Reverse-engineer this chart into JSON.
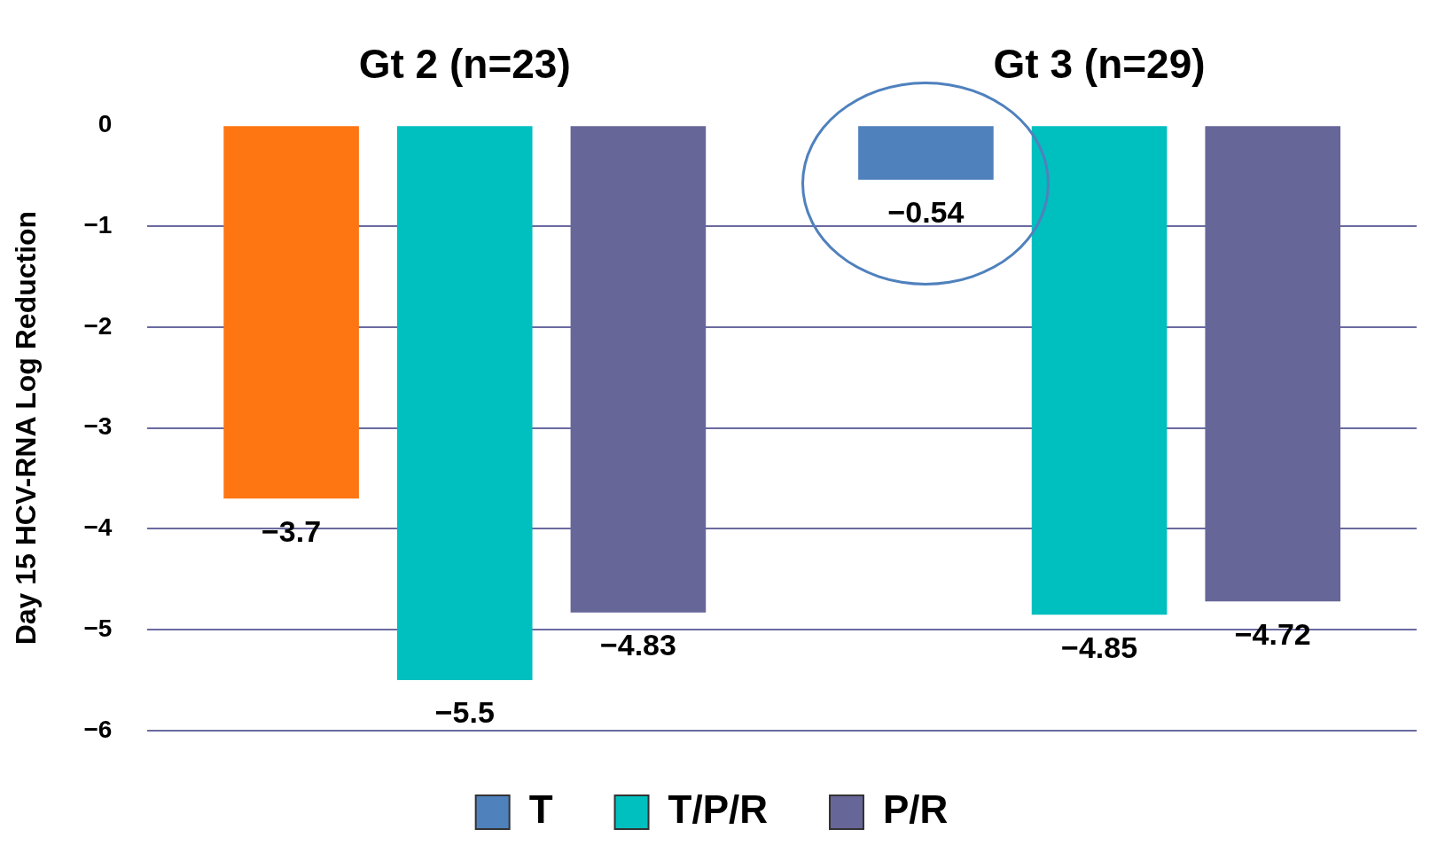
{
  "chart_data": {
    "type": "bar",
    "ylabel": "Day 15 HCV-RNA Log Reduction",
    "categories": [
      "Gt 2 (n=23)",
      "Gt 3 (n=29)"
    ],
    "series": [
      {
        "name": "T",
        "color": "#4f81bd",
        "colors": [
          "#fd7612",
          "#4f81bd"
        ],
        "values": [
          -3.7,
          -0.54
        ],
        "value_labels": [
          "−3.7",
          "−0.54"
        ]
      },
      {
        "name": "T/P/R",
        "color": "#00bfbf",
        "values": [
          -5.5,
          -4.85
        ],
        "value_labels": [
          "−5.5",
          "−4.85"
        ]
      },
      {
        "name": "P/R",
        "color": "#666699",
        "values": [
          -4.83,
          -4.72
        ],
        "value_labels": [
          "−4.83",
          "−4.72"
        ]
      }
    ],
    "ylim": [
      -6,
      0
    ],
    "yticks": [
      0,
      {
        "value": -1,
        "label": "−1"
      },
      {
        "value": -2,
        "label": "−2"
      },
      {
        "value": -3,
        "label": "−3"
      },
      {
        "value": -4,
        "label": "−4"
      },
      {
        "value": -5,
        "label": "−5"
      },
      {
        "value": -6,
        "label": "−6"
      }
    ],
    "grid": "y",
    "legend": "bottom"
  }
}
